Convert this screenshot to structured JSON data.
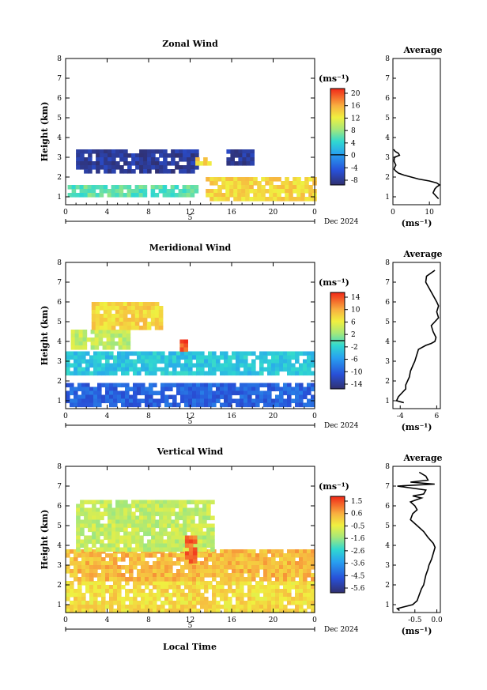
{
  "figure": {
    "xlabel": "Local Time"
  },
  "chart_data": [
    {
      "type": "heatmap",
      "title": "Zonal Wind",
      "ylabel": "Height (km)",
      "xticks": [
        "0",
        "4",
        "8",
        "12",
        "16",
        "20",
        "0"
      ],
      "yticks": [
        "1",
        "2",
        "3",
        "4",
        "5",
        "6",
        "7",
        "8"
      ],
      "xlim": [
        0,
        24
      ],
      "ylim": [
        0.6,
        8.0
      ],
      "day_label": "5",
      "date_label": "Dec 2024",
      "colorbar": {
        "unit": "(ms⁻¹)",
        "ticks": [
          "20",
          "16",
          "12",
          "8",
          "4",
          "0",
          "-4",
          "-8"
        ],
        "range": [
          -10,
          22
        ],
        "zero_line": 0
      },
      "regions": [
        {
          "x": [
            0.2,
            12.5
          ],
          "y": [
            1.0,
            1.6
          ],
          "value": 6
        },
        {
          "x": [
            1.0,
            12.5
          ],
          "y": [
            2.3,
            3.4
          ],
          "value": -8
        },
        {
          "x": [
            15.5,
            18.0
          ],
          "y": [
            2.6,
            3.4
          ],
          "value": -8
        },
        {
          "x": [
            13.5,
            24.0
          ],
          "y": [
            0.9,
            2.0
          ],
          "value": 14
        },
        {
          "x": [
            12.5,
            14.0
          ],
          "y": [
            2.6,
            3.0
          ],
          "value": 14
        }
      ],
      "profile": {
        "title": "Average",
        "xlabel": "(ms⁻¹)",
        "xticks": [
          "0",
          "10"
        ],
        "xlim": [
          0,
          13
        ],
        "height": [
          0.9,
          1.0,
          1.2,
          1.4,
          1.5,
          1.6,
          1.7,
          1.8,
          1.9,
          2.0,
          2.1,
          2.2,
          2.3,
          2.4,
          2.5,
          2.6,
          2.8,
          3.0,
          3.1,
          3.2,
          3.3,
          3.4
        ],
        "value": [
          12.5,
          12,
          11,
          11.5,
          12,
          12.8,
          12,
          10,
          7,
          5,
          3,
          1.5,
          0.8,
          0.3,
          0.5,
          0.8,
          0.3,
          0.4,
          1.8,
          1.5,
          0.6,
          0.2
        ]
      }
    },
    {
      "type": "heatmap",
      "title": "Meridional Wind",
      "ylabel": "Height (km)",
      "xticks": [
        "0",
        "4",
        "8",
        "12",
        "16",
        "20",
        "0"
      ],
      "yticks": [
        "1",
        "2",
        "3",
        "4",
        "5",
        "6",
        "7",
        "8"
      ],
      "xlim": [
        0,
        24
      ],
      "ylim": [
        0.6,
        8.0
      ],
      "day_label": "5",
      "date_label": "Dec 2024",
      "colorbar": {
        "unit": "(ms⁻¹)",
        "ticks": [
          "14",
          "10",
          "6",
          "2",
          "-2",
          "-6",
          "-10",
          "-14"
        ],
        "range": [
          -16,
          16
        ],
        "zero_line": 0
      },
      "regions": [
        {
          "x": [
            0.0,
            24.0
          ],
          "y": [
            0.8,
            1.9
          ],
          "value": -10
        },
        {
          "x": [
            0.0,
            24.0
          ],
          "y": [
            2.3,
            3.5
          ],
          "value": -3
        },
        {
          "x": [
            0.5,
            6.0
          ],
          "y": [
            3.6,
            4.6
          ],
          "value": 4
        },
        {
          "x": [
            2.5,
            9.0
          ],
          "y": [
            4.6,
            6.0
          ],
          "value": 8
        },
        {
          "x": [
            11.0,
            11.6
          ],
          "y": [
            3.6,
            4.1
          ],
          "value": 14
        }
      ],
      "profile": {
        "title": "Average",
        "xlabel": "(ms⁻¹)",
        "xticks": [
          "-4",
          "6"
        ],
        "xlim": [
          -6,
          7
        ],
        "height": [
          0.9,
          1.0,
          1.2,
          1.4,
          1.6,
          1.8,
          2.0,
          2.2,
          2.5,
          2.8,
          3.0,
          3.3,
          3.6,
          3.8,
          3.9,
          4.0,
          4.2,
          4.5,
          4.8,
          5.0,
          5.2,
          5.5,
          5.8,
          6.0,
          6.5,
          7.0,
          7.3,
          7.6
        ],
        "value": [
          -3,
          -5,
          -4.5,
          -3.5,
          -2.5,
          -2.5,
          -2,
          -1.5,
          -1.2,
          -0.5,
          0,
          0.5,
          1,
          3,
          4.5,
          5.5,
          5.8,
          5,
          4.5,
          5.5,
          6.5,
          6,
          6.5,
          6,
          4.5,
          3,
          3.2,
          5.5
        ]
      }
    },
    {
      "type": "heatmap",
      "title": "Vertical Wind",
      "ylabel": "Height (km)",
      "xticks": [
        "0",
        "4",
        "8",
        "12",
        "16",
        "20",
        "0"
      ],
      "yticks": [
        "1",
        "2",
        "3",
        "4",
        "5",
        "6",
        "7",
        "8"
      ],
      "xlim": [
        0,
        24
      ],
      "ylim": [
        0.6,
        8.0
      ],
      "day_label": "5",
      "date_label": "Dec 2024",
      "xlabel": "Local Time",
      "colorbar": {
        "unit": "(ms⁻¹)",
        "ticks": [
          "1.5",
          "0.6",
          "-0.5",
          "-1.6",
          "-2.6",
          "-3.6",
          "-4.5",
          "-5.6"
        ],
        "range": [
          -6,
          2
        ]
      },
      "regions": [
        {
          "x": [
            0.0,
            24.0
          ],
          "y": [
            0.6,
            2.2
          ],
          "value": -0.1
        },
        {
          "x": [
            0.0,
            24.0
          ],
          "y": [
            2.2,
            3.8
          ],
          "value": 0.4
        },
        {
          "x": [
            1.0,
            14.0
          ],
          "y": [
            3.8,
            6.3
          ],
          "value": -1.0
        },
        {
          "x": [
            11.5,
            12.5
          ],
          "y": [
            3.2,
            4.5
          ],
          "value": 1.4
        }
      ],
      "profile": {
        "title": "Average",
        "xlabel": "(ms⁻¹)",
        "xticks": [
          "-0.5",
          "0.0"
        ],
        "xlim": [
          -1.0,
          0.08
        ],
        "height": [
          0.7,
          0.8,
          1.0,
          1.2,
          1.5,
          1.8,
          2.0,
          2.2,
          2.5,
          2.8,
          3.0,
          3.3,
          3.6,
          3.9,
          4.1,
          4.4,
          4.7,
          5.0,
          5.3,
          5.6,
          5.8,
          6.0,
          6.2,
          6.4,
          6.5,
          6.6,
          6.8,
          7.0,
          7.1,
          7.2,
          7.3,
          7.5,
          7.7
        ],
        "value": [
          -0.85,
          -0.9,
          -0.55,
          -0.45,
          -0.4,
          -0.35,
          -0.3,
          -0.28,
          -0.25,
          -0.2,
          -0.18,
          -0.12,
          -0.08,
          -0.04,
          -0.08,
          -0.2,
          -0.3,
          -0.45,
          -0.6,
          -0.55,
          -0.45,
          -0.5,
          -0.6,
          -0.35,
          -0.55,
          -0.3,
          -0.25,
          -0.9,
          -0.05,
          -0.6,
          -0.2,
          -0.25,
          -0.4
        ]
      }
    }
  ]
}
